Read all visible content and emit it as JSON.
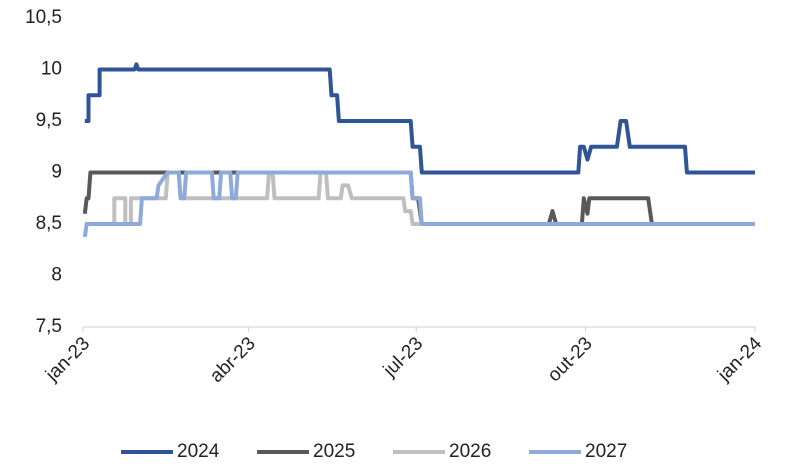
{
  "chart_data": {
    "type": "line",
    "xlim": [
      0,
      365
    ],
    "xticks": [
      {
        "value": 0,
        "label": "jan-23"
      },
      {
        "value": 90,
        "label": "abr-23"
      },
      {
        "value": 181,
        "label": "jul-23"
      },
      {
        "value": 273,
        "label": "out-23"
      },
      {
        "value": 365,
        "label": "jan-24"
      }
    ],
    "ylim": [
      7.5,
      10.5
    ],
    "yticks": [
      {
        "value": 7.5,
        "label": "7,5"
      },
      8,
      {
        "value": 8.5,
        "label": "8,5"
      },
      9,
      {
        "value": 9.5,
        "label": "9,5"
      },
      10,
      {
        "value": 10.5,
        "label": "10,5"
      }
    ],
    "grid": false,
    "legend": "bottom",
    "series": [
      {
        "name": "2024",
        "color": "#2f5597",
        "x": [
          1,
          3,
          3,
          9,
          9,
          28,
          29,
          30,
          134,
          135,
          138,
          139,
          178,
          179,
          183,
          184,
          269,
          270,
          272,
          274,
          276,
          290,
          292,
          295,
          297,
          327,
          328,
          365
        ],
        "values": [
          9.5,
          9.5,
          9.75,
          9.75,
          10,
          10,
          10.05,
          10,
          10,
          9.75,
          9.75,
          9.5,
          9.5,
          9.25,
          9.25,
          9,
          9,
          9.25,
          9.25,
          9.125,
          9.25,
          9.25,
          9.5,
          9.5,
          9.25,
          9.25,
          9,
          9
        ]
      },
      {
        "name": "2025",
        "color": "#595959",
        "x": [
          1,
          2,
          3,
          4,
          178,
          179,
          182,
          184,
          253,
          255,
          257,
          271,
          272,
          274,
          275,
          307,
          309,
          365
        ],
        "values": [
          8.6,
          8.75,
          8.75,
          9,
          9,
          8.75,
          8.75,
          8.5,
          8.5,
          8.625,
          8.5,
          8.5,
          8.75,
          8.6,
          8.75,
          8.75,
          8.5,
          8.5
        ]
      },
      {
        "name": "2026",
        "color": "#bfbfbf",
        "x": [
          1,
          17,
          17,
          23,
          23,
          26,
          26,
          45,
          46,
          52,
          53,
          100,
          101,
          103,
          104,
          128,
          129,
          132,
          133,
          140,
          141,
          144,
          146,
          174,
          175,
          178,
          179,
          365
        ],
        "values": [
          8.5,
          8.5,
          8.75,
          8.75,
          8.5,
          8.5,
          8.75,
          8.75,
          9,
          9,
          8.75,
          8.75,
          9,
          9,
          8.75,
          8.75,
          9,
          9,
          8.75,
          8.75,
          8.875,
          8.875,
          8.75,
          8.75,
          8.625,
          8.625,
          8.5,
          8.5
        ]
      },
      {
        "name": "2027",
        "color": "#8eaadb",
        "x": [
          1,
          2,
          31,
          32,
          40,
          41,
          46,
          52,
          53,
          55,
          56,
          70,
          71,
          74,
          75,
          80,
          81,
          83,
          84,
          178,
          179,
          183,
          184,
          365
        ],
        "values": [
          8.375,
          8.5,
          8.5,
          8.75,
          8.75,
          8.875,
          9,
          9,
          8.75,
          8.75,
          9,
          9,
          8.75,
          8.75,
          9,
          9,
          8.75,
          8.75,
          9,
          9,
          8.75,
          8.75,
          8.5,
          8.5
        ]
      }
    ]
  }
}
